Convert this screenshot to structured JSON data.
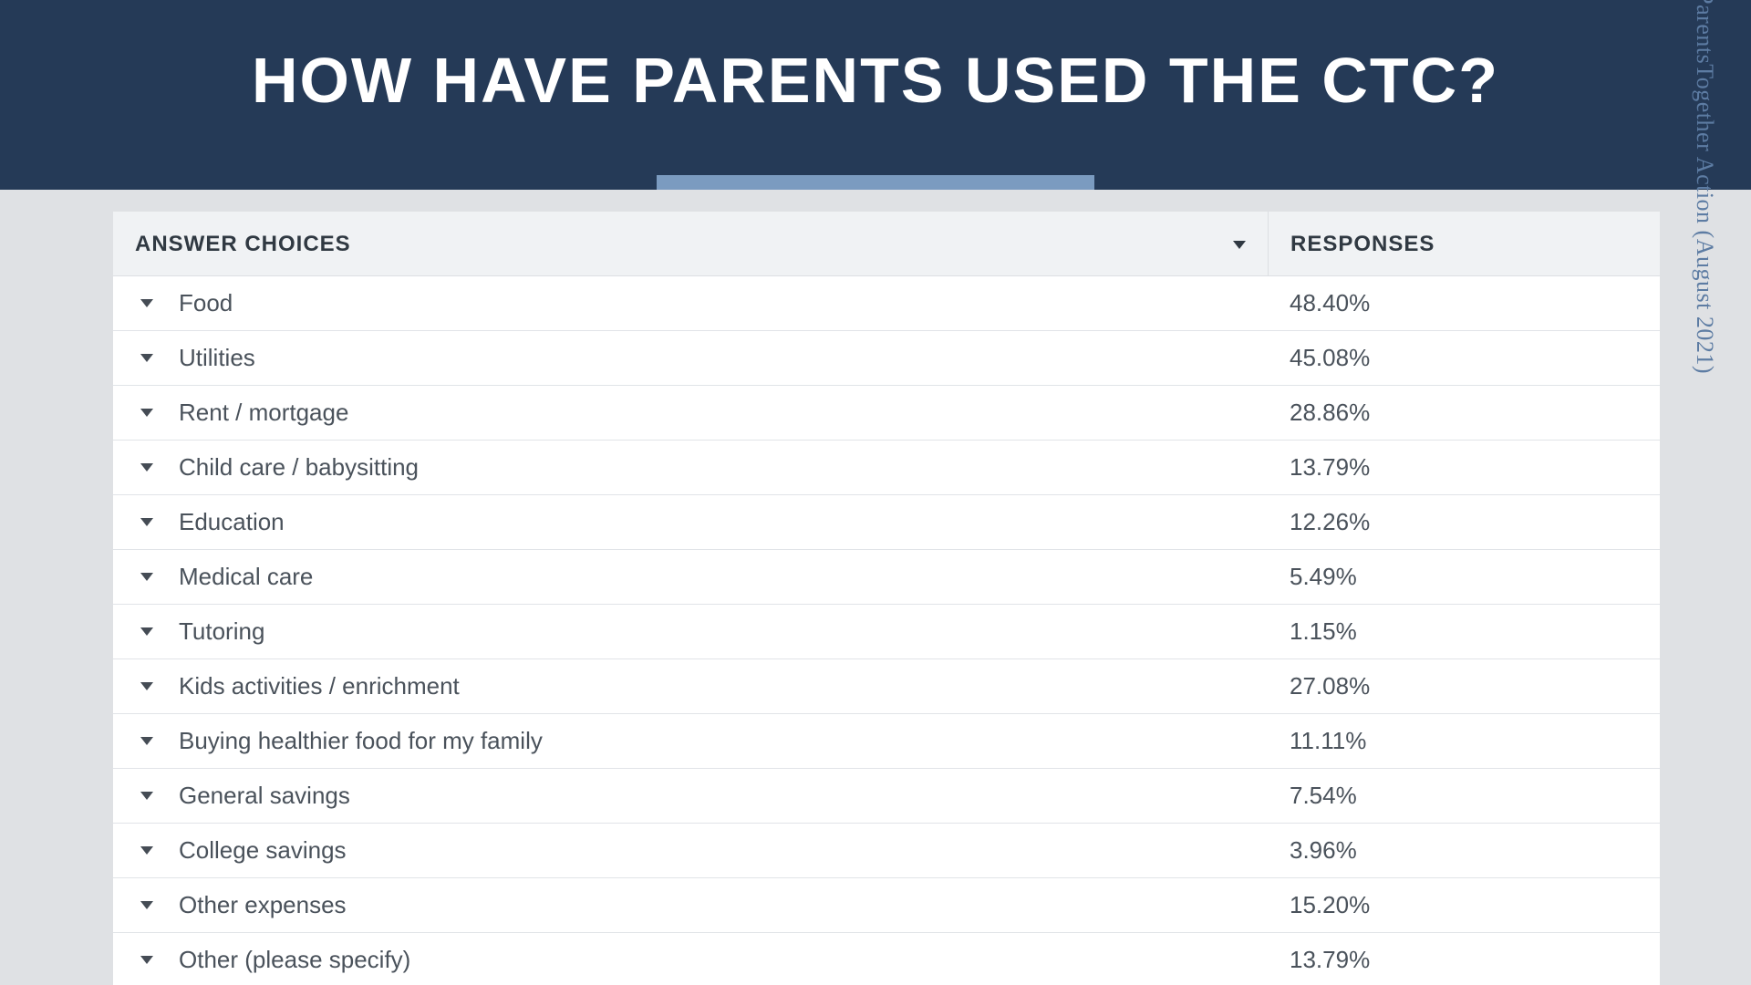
{
  "header": {
    "title": "HOW HAVE PARENTS USED THE CTC?",
    "title_fontsize": 70,
    "band_color": "#253a57",
    "accent_color": "#7b9bc0",
    "title_color": "#ffffff"
  },
  "page_background": "#dfe1e4",
  "source_label": "ParentsTogether Action (August 2021)",
  "source_color": "#5d7ca3",
  "table": {
    "type": "table",
    "header_bg": "#f0f2f4",
    "row_border_color": "#e1e4e8",
    "text_color": "#4a525b",
    "columns": [
      {
        "label": "ANSWER CHOICES",
        "has_dropdown_indicator": true
      },
      {
        "label": "RESPONSES",
        "has_dropdown_indicator": false
      }
    ],
    "rows": [
      {
        "label": "Food",
        "response": "48.40%"
      },
      {
        "label": "Utilities",
        "response": "45.08%"
      },
      {
        "label": "Rent / mortgage",
        "response": "28.86%"
      },
      {
        "label": "Child care / babysitting",
        "response": "13.79%"
      },
      {
        "label": "Education",
        "response": "12.26%"
      },
      {
        "label": "Medical care",
        "response": "5.49%"
      },
      {
        "label": "Tutoring",
        "response": "1.15%"
      },
      {
        "label": "Kids activities / enrichment",
        "response": "27.08%"
      },
      {
        "label": "Buying healthier food for my family",
        "response": "11.11%"
      },
      {
        "label": "General savings",
        "response": "7.54%"
      },
      {
        "label": "College savings",
        "response": "3.96%"
      },
      {
        "label": "Other expenses",
        "response": "15.20%"
      },
      {
        "label": "Other (please specify)",
        "response": "13.79%"
      }
    ]
  }
}
